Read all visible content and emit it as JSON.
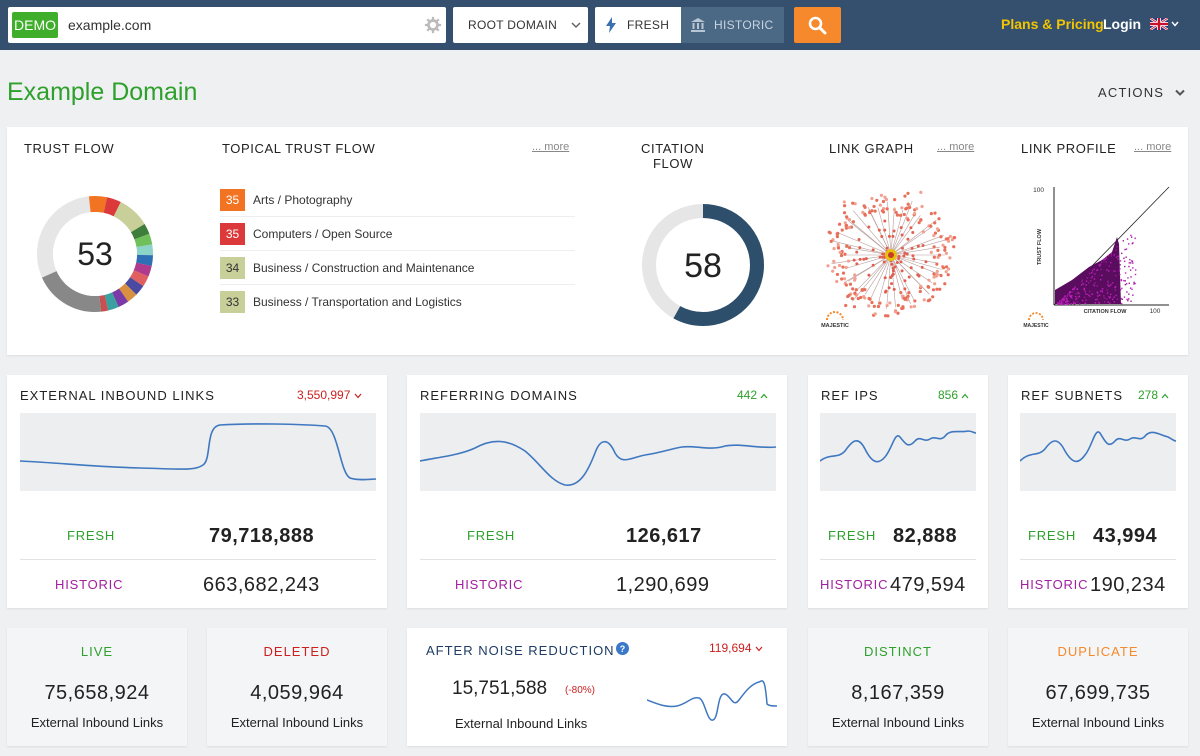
{
  "colors": {
    "topbar": "#34506e",
    "green": "#2ea02c",
    "orange": "#f5892b",
    "purple": "#a020a0",
    "red": "#cc1f1f",
    "navy": "#2d4f6c"
  },
  "header": {
    "demo_badge": "DEMO",
    "domain_value": "example.com",
    "scope": "ROOT DOMAIN",
    "fresh": "FRESH",
    "historic": "HISTORIC",
    "plans": "Plans & Pricing",
    "login": "Login",
    "icons": [
      "gear-icon",
      "chevron-down-icon",
      "lightning-icon",
      "bank-icon",
      "search-icon",
      "uk-flag-icon"
    ]
  },
  "page": {
    "title": "Example Domain",
    "actions": "ACTIONS"
  },
  "summary": {
    "trust_flow": {
      "label": "TRUST FLOW",
      "value": "53"
    },
    "topical": {
      "label": "TOPICAL TRUST FLOW",
      "more": "... more",
      "items": [
        {
          "score": "35",
          "name": "Arts / Photography",
          "color": "#f27321",
          "text": "#fff"
        },
        {
          "score": "35",
          "name": "Computers / Open Source",
          "color": "#dc3a3a",
          "text": "#fff"
        },
        {
          "score": "34",
          "name": "Business / Construction and Maintenance",
          "color": "#c9cf99",
          "text": "#333"
        },
        {
          "score": "33",
          "name": "Business / Transportation and Logistics",
          "color": "#c9cf99",
          "text": "#333"
        }
      ]
    },
    "citation_flow": {
      "label_line1": "CITATION",
      "label_line2": "FLOW",
      "value": "58",
      "fraction": 0.58
    },
    "link_graph": {
      "label": "LINK GRAPH",
      "more": "... more",
      "logo": "MAJESTIC"
    },
    "link_profile": {
      "label": "LINK PROFILE",
      "more": "... more",
      "y_axis": "TRUST FLOW",
      "x_axis": "CITATION FLOW",
      "y_max": "100",
      "x_max": "100",
      "logo": "MAJESTIC"
    }
  },
  "metrics": {
    "external": {
      "title": "EXTERNAL INBOUND LINKS",
      "total": "3,550,997",
      "trend": "down",
      "fresh_label": "FRESH",
      "fresh": "79,718,888",
      "historic_label": "HISTORIC",
      "historic": "663,682,243"
    },
    "domains": {
      "title": "REFERRING DOMAINS",
      "total": "442",
      "trend": "up",
      "fresh_label": "FRESH",
      "fresh": "126,617",
      "historic_label": "HISTORIC",
      "historic": "1,290,699"
    },
    "ips": {
      "title": "REF IPS",
      "total": "856",
      "trend": "up",
      "fresh_label": "FRESH",
      "fresh": "82,888",
      "historic_label": "HISTORIC",
      "historic": "479,594"
    },
    "subnets": {
      "title": "REF SUBNETS",
      "total": "278",
      "trend": "up",
      "fresh_label": "FRESH",
      "fresh": "43,994",
      "historic_label": "HISTORIC",
      "historic": "190,234"
    }
  },
  "bottom": {
    "live": {
      "title": "LIVE",
      "value": "75,658,924",
      "sub": "External Inbound Links"
    },
    "deleted": {
      "title": "DELETED",
      "value": "4,059,964",
      "sub": "External Inbound Links"
    },
    "noise": {
      "title": "AFTER NOISE REDUCTION",
      "total": "119,694",
      "value": "15,751,588",
      "change": "(-80%)",
      "sub": "External Inbound Links"
    },
    "distinct": {
      "title": "DISTINCT",
      "value": "8,167,359",
      "sub": "External Inbound Links"
    },
    "duplicate": {
      "title": "DUPLICATE",
      "value": "67,699,735",
      "sub": "External Inbound Links"
    }
  }
}
